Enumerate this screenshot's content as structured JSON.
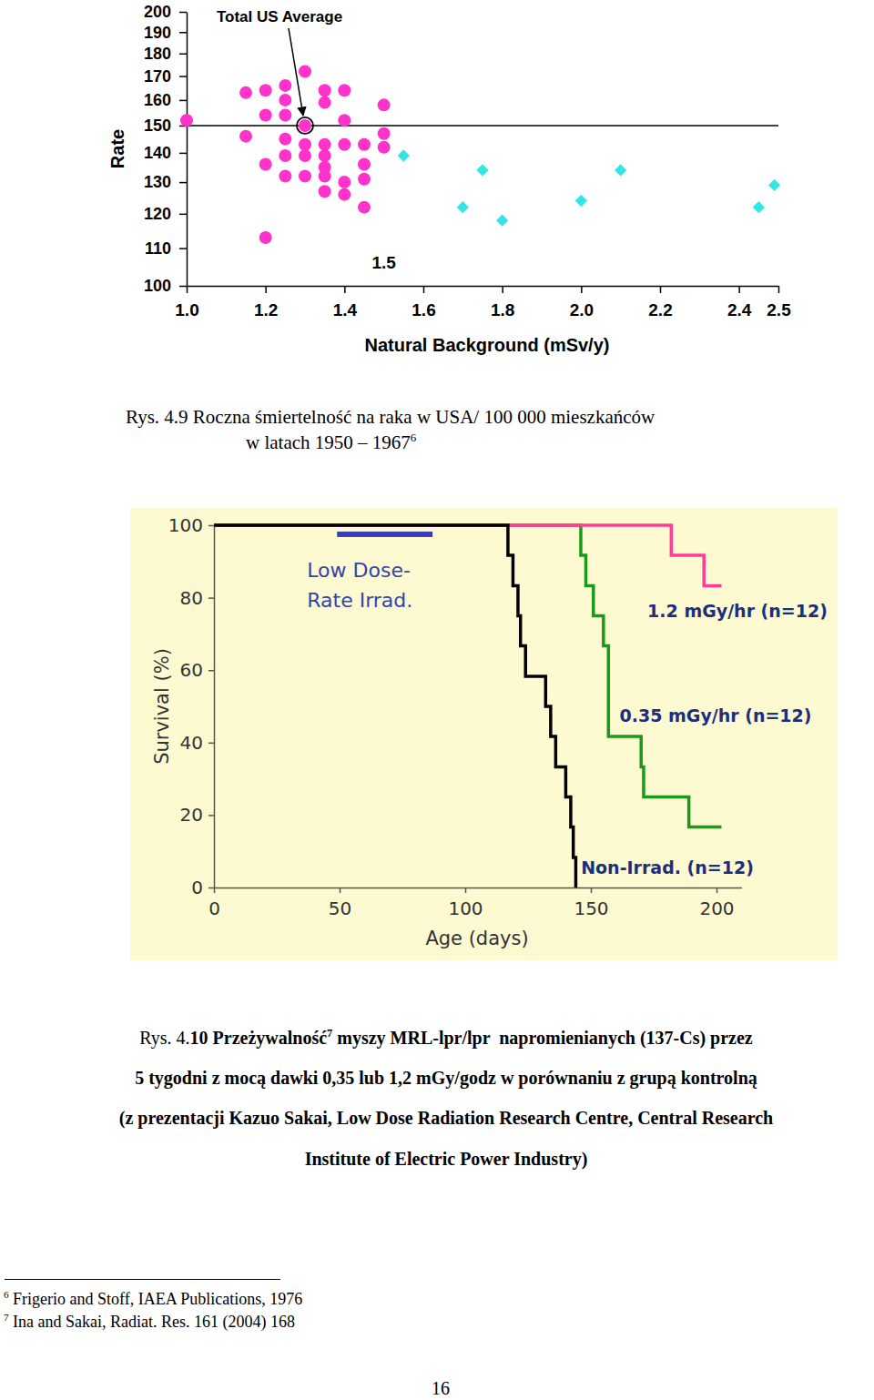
{
  "chart_data": [
    {
      "type": "scatter",
      "x_label": "Natural Background (mSv/y)",
      "y_label": "Rate",
      "log": "y",
      "xlim": [
        1.0,
        2.5
      ],
      "xticks": [
        {
          "value": 1,
          "label": "1.0"
        },
        1.2,
        1.4,
        1.6,
        1.8,
        {
          "value": 2,
          "label": "2.0"
        },
        2.2,
        2.4,
        2.5
      ],
      "ylim": [
        100,
        200
      ],
      "yticks": [
        100,
        110,
        120,
        130,
        140,
        150,
        160,
        170,
        180,
        190,
        200
      ],
      "series": [
        {
          "color": "#ff33cc",
          "marker": "circle",
          "x": [
            1.0,
            1.15,
            1.15,
            1.2,
            1.2,
            1.2,
            1.2,
            1.25,
            1.25,
            1.25,
            1.25,
            1.25,
            1.25,
            1.3,
            1.3,
            1.3,
            1.3,
            1.3,
            1.35,
            1.35,
            1.35,
            1.35,
            1.35,
            1.35,
            1.35,
            1.4,
            1.4,
            1.4,
            1.4,
            1.4,
            1.45,
            1.45,
            1.45,
            1.45,
            1.5,
            1.5,
            1.5
          ],
          "values": [
            152,
            163,
            146,
            164,
            154,
            136,
            113,
            166,
            160,
            154,
            145,
            139,
            132,
            172,
            150,
            143,
            139,
            132,
            164,
            159,
            143,
            139,
            135,
            132,
            127,
            164,
            152,
            143,
            130,
            126,
            143,
            136,
            131,
            122,
            158,
            147,
            142
          ]
        },
        {
          "color": "#33e6e6",
          "marker": "diamond",
          "x": [
            1.55,
            1.7,
            1.75,
            1.8,
            2.0,
            2.1,
            2.45,
            2.49
          ],
          "values": [
            139,
            122,
            134,
            118,
            124,
            134,
            122,
            129
          ]
        }
      ],
      "reference_line": 150,
      "annotations": [
        {
          "text": "Total US Average",
          "x": 1.3,
          "y": 150
        },
        {
          "text": "1.5",
          "x": 1.5
        }
      ]
    },
    {
      "type": "line",
      "x_label": "Age (days)",
      "y_label": "Survival (%)",
      "line_style": "step",
      "xlim": [
        0,
        210
      ],
      "xticks": [
        0,
        50,
        100,
        150,
        200
      ],
      "ylim": [
        0,
        100
      ],
      "yticks": [
        0,
        20,
        40,
        60,
        80,
        100
      ],
      "series": [
        {
          "name": "0.35 mGy/hr (n=12)",
          "color": "#1a9a1a",
          "x": [
            0,
            146,
            148,
            151,
            155,
            157,
            170,
            171,
            189,
            202
          ],
          "values": [
            100,
            91.7,
            83.3,
            75,
            66.7,
            41.7,
            33.3,
            25,
            16.7,
            16.7
          ]
        },
        {
          "name": "1.2 mGy/hr (n=12)",
          "color": "#ff3d99",
          "x": [
            0,
            182,
            195,
            202
          ],
          "values": [
            100,
            91.7,
            83.3,
            83.3
          ]
        },
        {
          "name": "Non-Irrad. (n=12)",
          "color": "#000000",
          "x": [
            0,
            117,
            119,
            121,
            122,
            124,
            132,
            134,
            136,
            140,
            142,
            143,
            144
          ],
          "values": [
            100,
            91.7,
            83.3,
            75,
            66.7,
            58.3,
            50,
            41.7,
            33.3,
            25,
            16.7,
            8.3,
            0
          ]
        }
      ],
      "annotations": [
        {
          "text": [
            "Low Dose-",
            "Rate Irrad."
          ],
          "x": [
            49,
            87
          ],
          "y": 97.5
        }
      ]
    }
  ],
  "captions": [
    {
      "lines": [
        [
          {
            "text": "Rys. 4.9 Roczna śmiertelność na raka w USA/ 100 000 mieszkańców"
          }
        ],
        [
          {
            "text": "w latach 1950 – 1967"
          },
          {
            "sup": 6
          }
        ]
      ]
    },
    {
      "lines": [
        [
          {
            "text": "Rys. 4."
          },
          {
            "text": "10 Przeżywalność"
          },
          {
            "sup": 7
          },
          {
            "text": " myszy MRL-lpr/lpr  napromienianych (137-Cs) przez"
          }
        ],
        [
          {
            "text": "5 tygodni z mocą dawki 0,35 lub 1,2 mGy/godz w porównaniu z grupą kontrolną"
          }
        ],
        [
          {
            "text": "(z prezentacji Kazuo Sakai, Low Dose Radiation Research Centre, Central Research"
          }
        ],
        [
          {
            "text": "Institute of Electric Power Industry)"
          }
        ]
      ]
    }
  ],
  "footnotes": [
    {
      "ref": 6,
      "text": "Frigerio and Stoff, IAEA Publications, 1976"
    },
    {
      "ref": 7,
      "text": "Ina and Sakai, Radiat. Res. 161 (2004) 168"
    }
  ],
  "page_number": 16
}
